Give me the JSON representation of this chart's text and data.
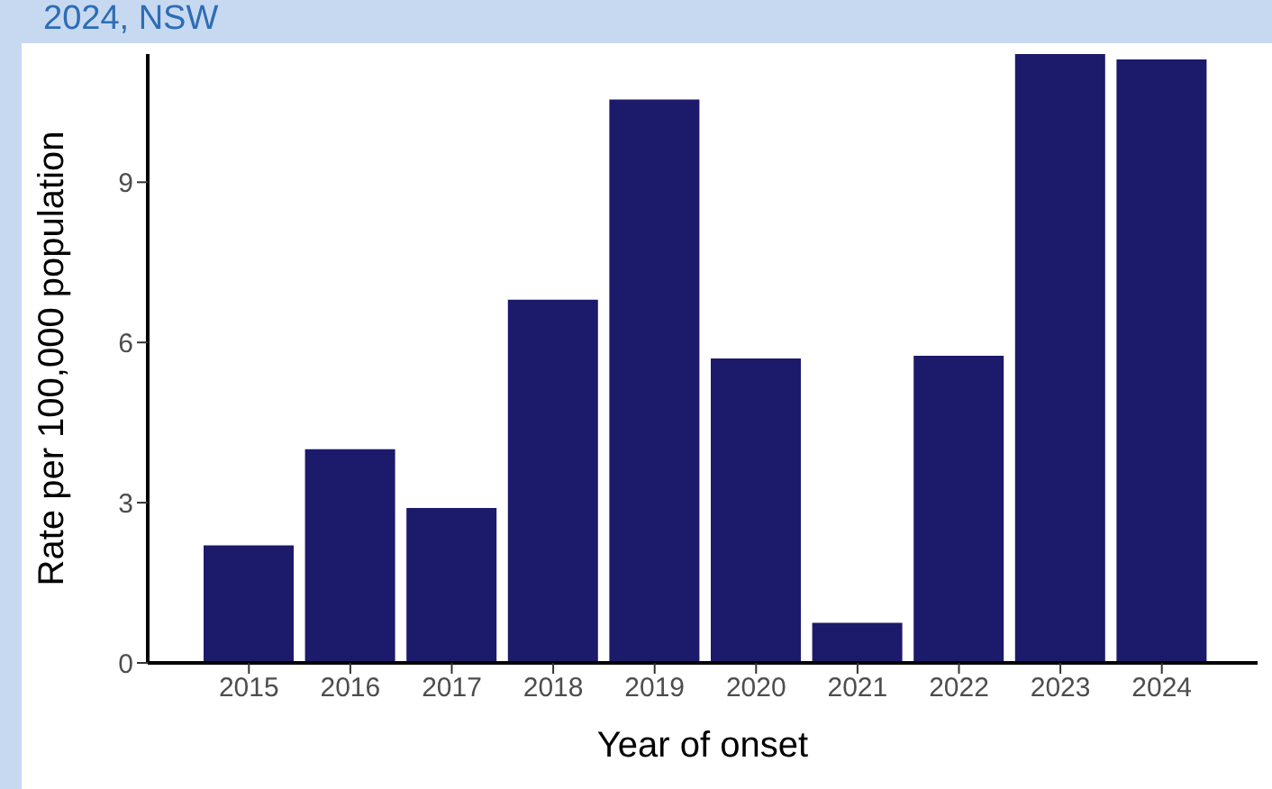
{
  "chart_data": {
    "type": "bar",
    "title": "2024, NSW",
    "xlabel": "Year of onset",
    "ylabel": "Rate per 100,000 population",
    "categories": [
      "2015",
      "2016",
      "2017",
      "2018",
      "2019",
      "2020",
      "2021",
      "2022",
      "2023",
      "2024"
    ],
    "values": [
      2.2,
      4.0,
      2.9,
      6.8,
      10.55,
      5.7,
      0.75,
      5.75,
      11.4,
      11.3
    ],
    "color": "#1b1a6b",
    "ylim": [
      0,
      11.4
    ],
    "yticks": [
      0,
      3,
      6,
      9
    ],
    "grid": false
  }
}
